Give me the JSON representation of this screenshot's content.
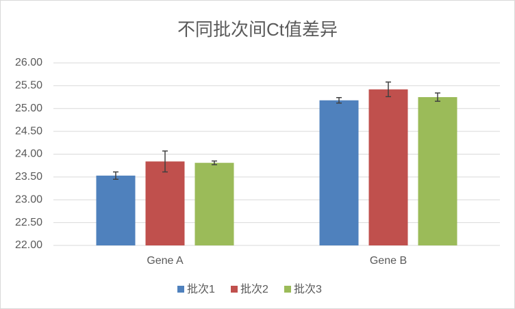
{
  "chart_data": {
    "type": "bar",
    "title": "不同批次间Ct值差异",
    "categories": [
      "Gene A",
      "Gene B"
    ],
    "series": [
      {
        "name": "批次1",
        "color": "#4f81bd",
        "values": [
          23.53,
          25.18
        ],
        "errors": [
          0.08,
          0.06
        ]
      },
      {
        "name": "批次2",
        "color": "#c0504d",
        "values": [
          23.84,
          25.42
        ],
        "errors": [
          0.23,
          0.16
        ]
      },
      {
        "name": "批次3",
        "color": "#9bbb59",
        "values": [
          23.81,
          25.25
        ],
        "errors": [
          0.04,
          0.09
        ]
      }
    ],
    "ylim": [
      22,
      26
    ],
    "yticks": [
      {
        "value": 22,
        "label": "22.00"
      },
      {
        "value": 22.5,
        "label": "22.50"
      },
      {
        "value": 23,
        "label": "23.00"
      },
      {
        "value": 23.5,
        "label": "23.50"
      },
      {
        "value": 24,
        "label": "24.00"
      },
      {
        "value": 24.5,
        "label": "24.50"
      },
      {
        "value": 25,
        "label": "25.00"
      },
      {
        "value": 25.5,
        "label": "25.50"
      },
      {
        "value": 26,
        "label": "26.00"
      }
    ],
    "grid": true,
    "legend": "bottom"
  }
}
